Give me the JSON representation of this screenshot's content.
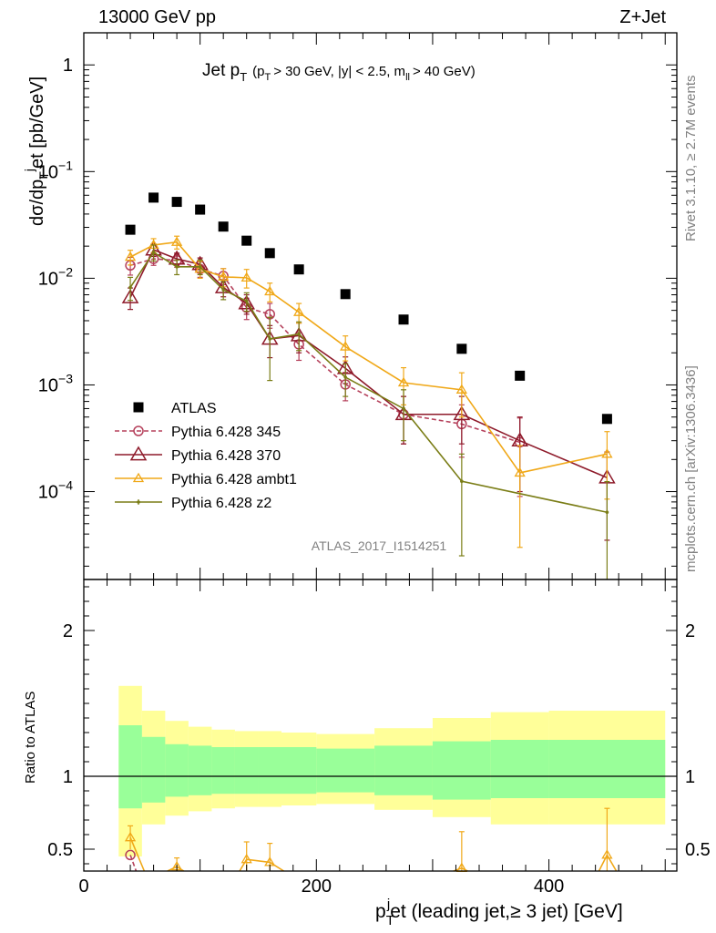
{
  "header": {
    "left": "13000 GeV pp",
    "right": "Z+Jet"
  },
  "side_labels": {
    "rivet": "Rivet 3.1.10, ≥ 2.7M events",
    "mcplots": "mcplots.cern.ch [arXiv:1306.3436]"
  },
  "chart_data": [
    {
      "type": "scatter",
      "title": "Jet pT (pT > 30 GeV, |y| < 2.5, mll > 40 GeV)",
      "title_parts": {
        "main": "Jet p",
        "sub_T": "T",
        "rest_open": "(p",
        "rest_sub_T": "T",
        "rest_mid": "> 30 GeV, |y| < 2.5, m",
        "rest_sub_ll": "ll",
        "rest_end": "> 40 GeV)"
      },
      "ylabel": "dσ/dp_T^jet [pb/GeV]",
      "ylabel_parts": {
        "a": "dσ/dp",
        "sub": "T",
        "sup": "j",
        "b": "et [pb/GeV]"
      },
      "yscale": "log",
      "ylim": [
        1.5e-05,
        2.0
      ],
      "xlim": [
        0,
        510
      ],
      "y_ticks": [
        {
          "value": 1,
          "base": "1",
          "exp": ""
        },
        {
          "value": 0.1,
          "base": "10",
          "exp": "−1"
        },
        {
          "value": 0.01,
          "base": "10",
          "exp": "−2"
        },
        {
          "value": 0.001,
          "base": "10",
          "exp": "−3"
        },
        {
          "value": 0.0001,
          "base": "10",
          "exp": "−4"
        }
      ],
      "watermark": "ATLAS_2017_I1514251",
      "legend_position": "lower-left",
      "series": [
        {
          "name": "ATLAS",
          "color": "#000000",
          "marker": "square",
          "x": [
            40,
            60,
            80,
            100,
            120,
            140,
            160,
            185,
            225,
            275,
            325,
            375,
            450
          ],
          "y": [
            0.0285,
            0.057,
            0.052,
            0.044,
            0.0305,
            0.0225,
            0.0172,
            0.0121,
            0.0071,
            0.0041,
            0.00218,
            0.00122,
            0.00048
          ]
        },
        {
          "name": "Pythia 6.428 345",
          "color": "#b5405b",
          "marker": "circle",
          "dash": true,
          "x": [
            40,
            60,
            80,
            100,
            120,
            140,
            160,
            185,
            225,
            275,
            325,
            375
          ],
          "y": [
            0.0132,
            0.0152,
            0.0147,
            0.0122,
            0.0105,
            0.0053,
            0.0046,
            0.0024,
            0.00101,
            0.00053,
            0.00043,
            0.00029
          ],
          "err": [
            0.0025,
            0.002,
            0.002,
            0.002,
            0.0018,
            0.0012,
            0.0012,
            0.0007,
            0.0003,
            0.00025,
            0.00022,
            0.0002
          ]
        },
        {
          "name": "Pythia 6.428 370",
          "color": "#8e1a2a",
          "marker": "triangle",
          "x": [
            40,
            60,
            80,
            100,
            120,
            140,
            160,
            185,
            225,
            275,
            325,
            375,
            450
          ],
          "y": [
            0.0066,
            0.0185,
            0.0152,
            0.0135,
            0.0082,
            0.0058,
            0.0027,
            0.0029,
            0.00143,
            0.00053,
            0.00053,
            0.0003,
            0.000135
          ],
          "err": [
            0.0015,
            0.0025,
            0.002,
            0.002,
            0.0015,
            0.0012,
            0.0009,
            0.0009,
            0.0004,
            0.00025,
            0.00025,
            0.0002,
            0.0001
          ]
        },
        {
          "name": "Pythia 6.428 ambt1",
          "color": "#f0a818",
          "marker": "triangle-open",
          "x": [
            40,
            60,
            80,
            100,
            120,
            140,
            160,
            185,
            225,
            275,
            325,
            375,
            450
          ],
          "y": [
            0.0158,
            0.0205,
            0.0218,
            0.0122,
            0.0103,
            0.0101,
            0.0075,
            0.0048,
            0.00228,
            0.00105,
            0.0009,
            0.00015,
            0.000225
          ],
          "err": [
            0.0025,
            0.003,
            0.003,
            0.0022,
            0.002,
            0.002,
            0.0015,
            0.001,
            0.0006,
            0.0004,
            0.0004,
            0.00012,
            0.00014
          ]
        },
        {
          "name": "Pythia 6.428 z2",
          "color": "#7a7d16",
          "marker": "dot",
          "x": [
            40,
            60,
            80,
            100,
            120,
            140,
            160,
            185,
            225,
            275,
            325,
            450
          ],
          "y": [
            0.0082,
            0.0175,
            0.0128,
            0.0128,
            0.0078,
            0.0061,
            0.0027,
            0.003,
            0.00118,
            0.0006,
            0.000125,
            6.4e-05
          ],
          "err": [
            0.002,
            0.003,
            0.002,
            0.002,
            0.0015,
            0.0012,
            0.0016,
            0.0009,
            0.0004,
            0.0003,
            0.0001,
            6e-05
          ]
        }
      ]
    },
    {
      "type": "scatter",
      "ylabel": "Ratio to ATLAS",
      "xlabel": "p_T^jet (leading jet,≥ 3 jet) [GeV]",
      "xlabel_parts": {
        "a": "p",
        "sub": "T",
        "sup": "j",
        "b": "et (leading jet,≥ 3 jet) [GeV]"
      },
      "ylim": [
        0.35,
        2.35
      ],
      "xlim": [
        0,
        510
      ],
      "y_ticks": [
        "0.5",
        "1",
        "2"
      ],
      "x_ticks": [
        "0",
        "200",
        "400"
      ],
      "bands": {
        "x_edges": [
          30,
          50,
          70,
          90,
          110,
          130,
          150,
          170,
          200,
          250,
          300,
          350,
          400,
          500
        ],
        "green_lo": [
          0.78,
          0.82,
          0.86,
          0.87,
          0.88,
          0.88,
          0.88,
          0.88,
          0.89,
          0.87,
          0.84,
          0.85,
          0.85
        ],
        "green_hi": [
          1.35,
          1.27,
          1.22,
          1.21,
          1.2,
          1.2,
          1.2,
          1.2,
          1.19,
          1.21,
          1.24,
          1.25,
          1.25
        ],
        "yellow_lo": [
          0.45,
          0.67,
          0.73,
          0.76,
          0.78,
          0.79,
          0.79,
          0.8,
          0.81,
          0.77,
          0.72,
          0.67,
          0.67
        ],
        "yellow_hi": [
          1.62,
          1.45,
          1.38,
          1.34,
          1.32,
          1.31,
          1.31,
          1.3,
          1.29,
          1.33,
          1.4,
          1.44,
          1.45
        ]
      },
      "series": [
        {
          "name": "Pythia 6.428 345",
          "color": "#b5405b",
          "marker": "circle",
          "x": [
            40,
            45
          ],
          "y": [
            0.46,
            0.35
          ],
          "err": [
            0.06,
            0.0
          ]
        },
        {
          "name": "Pythia 6.428 ambt1",
          "color": "#f0a818",
          "marker": "triangle-open",
          "x": [
            40,
            80,
            140,
            160,
            325,
            450
          ],
          "y": [
            0.58,
            0.38,
            0.43,
            0.41,
            0.37,
            0.46
          ],
          "err": [
            0.08,
            0.06,
            0.12,
            0.13,
            0.25,
            0.32
          ]
        }
      ]
    }
  ]
}
